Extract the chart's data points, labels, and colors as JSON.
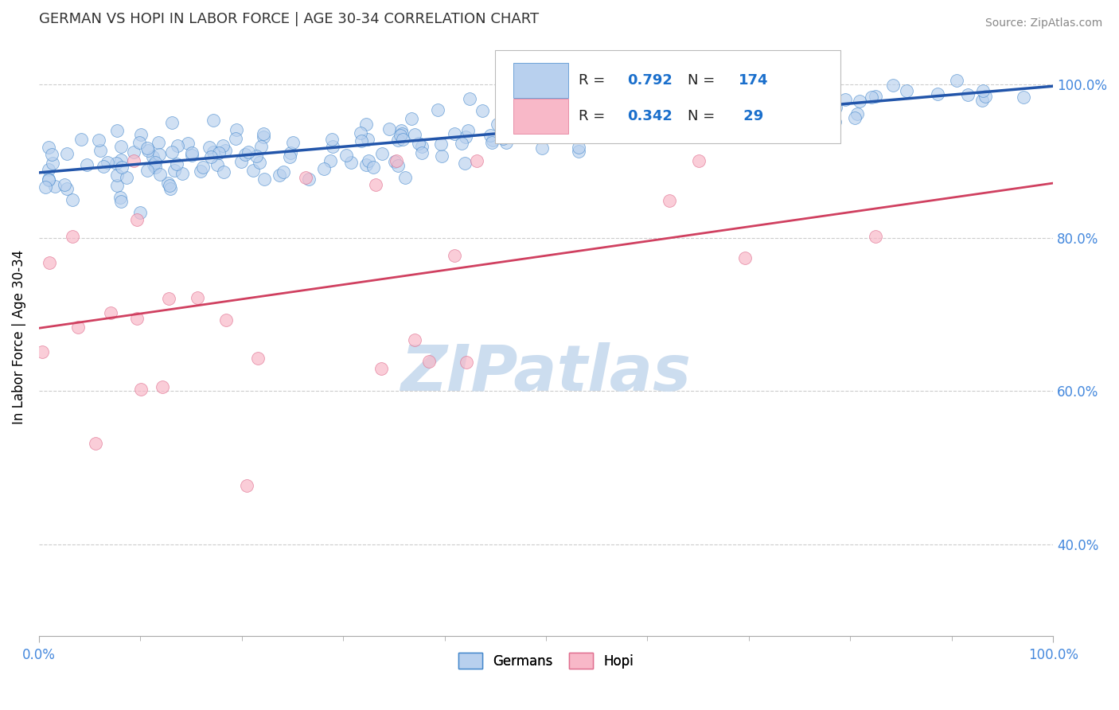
{
  "title": "GERMAN VS HOPI IN LABOR FORCE | AGE 30-34 CORRELATION CHART",
  "source_text": "Source: ZipAtlas.com",
  "ylabel": "In Labor Force | Age 30-34",
  "xlim": [
    0.0,
    1.0
  ],
  "ylim": [
    0.28,
    1.06
  ],
  "y_ticks": [
    0.4,
    0.6,
    0.8,
    1.0
  ],
  "y_tick_labels": [
    "40.0%",
    "60.0%",
    "80.0%",
    "100.0%"
  ],
  "german_R": 0.792,
  "german_N": 174,
  "hopi_R": 0.342,
  "hopi_N": 29,
  "german_color": "#b8d0ee",
  "german_edge_color": "#4488cc",
  "german_line_color": "#2255aa",
  "hopi_color": "#f8b8c8",
  "hopi_edge_color": "#e07090",
  "hopi_line_color": "#d04060",
  "legend_color": "#1a6fcc",
  "watermark_color": "#ccddef",
  "title_color": "#333333",
  "title_fontsize": 13,
  "tick_color": "#4488dd",
  "grid_color": "#cccccc",
  "seed": 7
}
